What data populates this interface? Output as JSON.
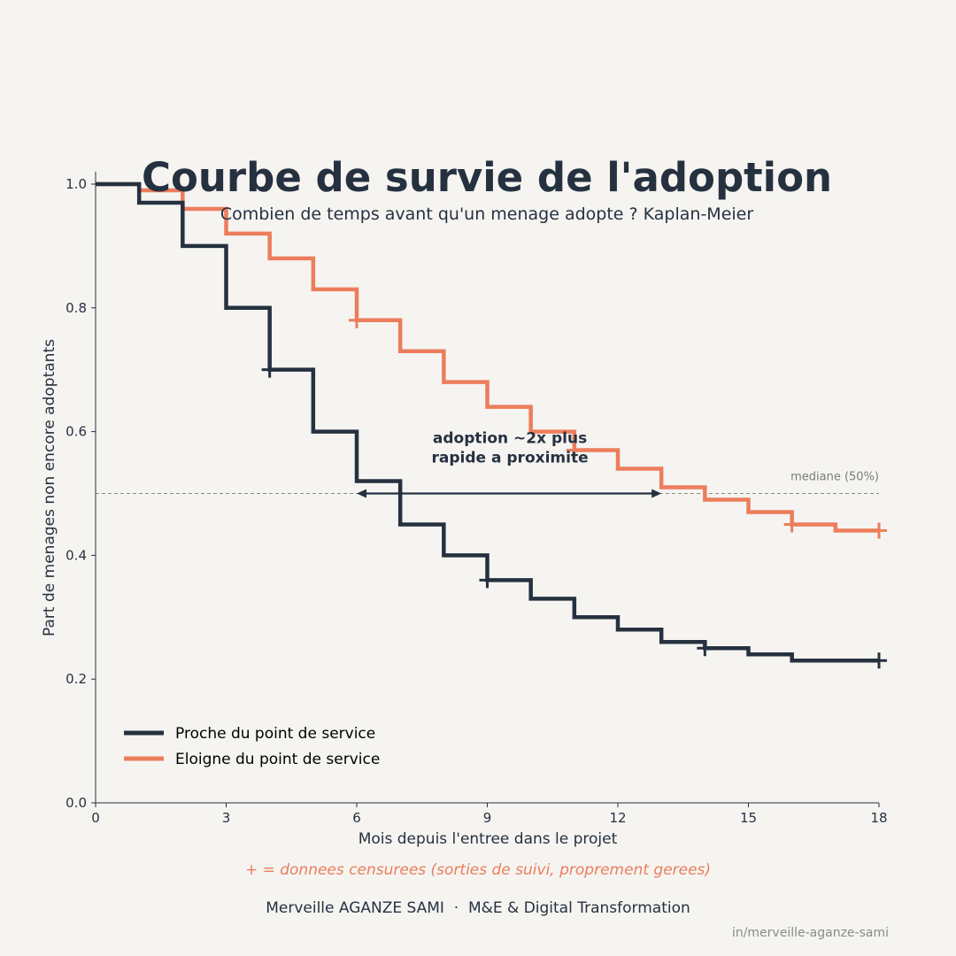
{
  "colors": {
    "background": "#f5f4f1",
    "text": "#263140",
    "near": "#263140",
    "far": "#ec7d5c",
    "muted": "#7a7a7a",
    "grid_line": "#8a8a8a"
  },
  "chart_data": {
    "type": "line",
    "step": "post",
    "title": "Courbe de survie de l'adoption",
    "subtitle": "Combien de temps avant qu'un menage adopte ? Kaplan-Meier",
    "xlabel": "Mois depuis l'entree dans le projet",
    "ylabel": "Part de menages non encore adoptants",
    "xlim": [
      0,
      18
    ],
    "ylim": [
      0,
      1.02
    ],
    "xticks": [
      0,
      3,
      6,
      9,
      12,
      15,
      18
    ],
    "xtick_labels": [
      "0",
      "3",
      "6",
      "9",
      "12",
      "15",
      "18"
    ],
    "yticks": [
      0.0,
      0.2,
      0.4,
      0.6,
      0.8,
      1.0
    ],
    "ytick_labels": [
      "0.0",
      "0.2",
      "0.4",
      "0.6",
      "0.8",
      "1.0"
    ],
    "grid": false,
    "legend": "lower-left",
    "series": [
      {
        "name": "Proche du point de service",
        "color_key": "near",
        "x": [
          0,
          1,
          2,
          3,
          4,
          5,
          6,
          7,
          8,
          9,
          10,
          11,
          12,
          13,
          14,
          15,
          16,
          17,
          18
        ],
        "y": [
          1.0,
          0.97,
          0.9,
          0.8,
          0.7,
          0.6,
          0.52,
          0.45,
          0.4,
          0.36,
          0.33,
          0.3,
          0.28,
          0.26,
          0.25,
          0.24,
          0.23,
          0.23,
          0.23
        ],
        "censored": [
          4,
          9,
          14,
          18
        ]
      },
      {
        "name": "Eloigne du point de service",
        "color_key": "far",
        "x": [
          0,
          1,
          2,
          3,
          4,
          5,
          6,
          7,
          8,
          9,
          10,
          11,
          12,
          13,
          14,
          15,
          16,
          17,
          18
        ],
        "y": [
          1.0,
          0.99,
          0.96,
          0.92,
          0.88,
          0.83,
          0.78,
          0.73,
          0.68,
          0.64,
          0.6,
          0.57,
          0.54,
          0.51,
          0.49,
          0.47,
          0.45,
          0.44,
          0.44
        ],
        "censored": [
          6,
          11,
          16,
          18
        ]
      }
    ],
    "reference_line": {
      "y": 0.5,
      "label": "mediane (50%)"
    },
    "annotation": {
      "lines": [
        "adoption ~2x plus",
        "rapide a proximite"
      ],
      "arrow_from_x": 6,
      "arrow_to_x": 13,
      "arrow_y": 0.5
    },
    "footnote": "+ = donnees censurees (sorties de suivi, proprement gerees)"
  },
  "footer": {
    "credit": "Merveille AGANZE SAMI  ·  M&E & Digital Transformation",
    "handle": "in/merveille-aganze-sami"
  }
}
